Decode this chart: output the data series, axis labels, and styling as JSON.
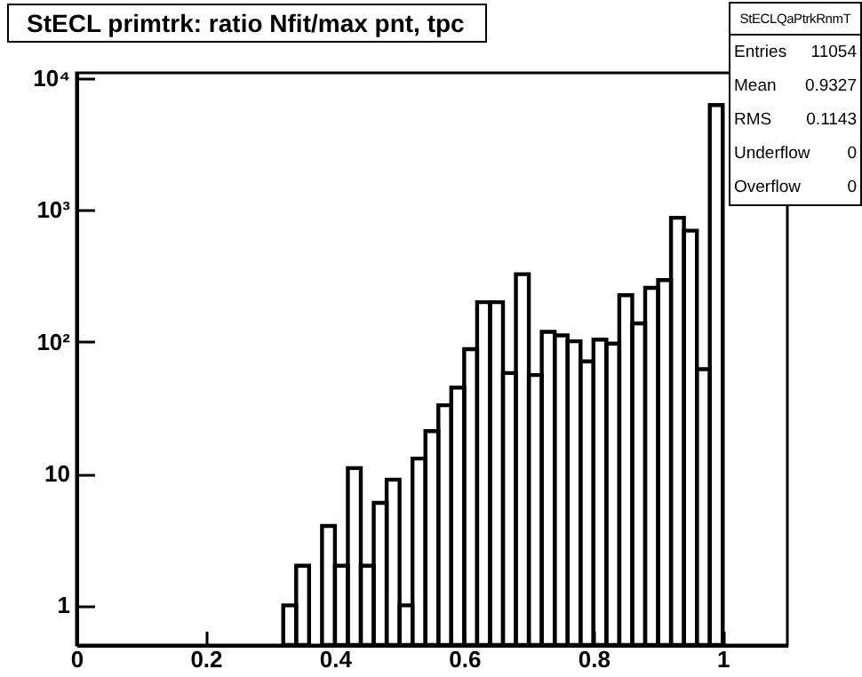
{
  "chart_data": {
    "type": "histogram",
    "title": "StECL primtrk: ratio Nfit/max pnt, tpc",
    "bins": [
      0.32,
      0.34,
      0.36,
      0.38,
      0.4,
      0.42,
      0.44,
      0.46,
      0.48,
      0.5,
      0.52,
      0.54,
      0.56,
      0.58,
      0.6,
      0.62,
      0.64,
      0.66,
      0.68,
      0.7,
      0.72,
      0.74,
      0.76,
      0.78,
      0.8,
      0.82,
      0.84,
      0.86,
      0.88,
      0.9,
      0.92,
      0.94,
      0.96,
      0.98,
      1.0
    ],
    "values": [
      1,
      2,
      null,
      4,
      2,
      11,
      2,
      6,
      9,
      1,
      13,
      21,
      33,
      45,
      88,
      200,
      200,
      58,
      326,
      56,
      119,
      112,
      101,
      71,
      104,
      97,
      226,
      138,
      257,
      294,
      874,
      698,
      62,
      6270
    ],
    "color": "#000000",
    "xlim": [
      0,
      1.1
    ],
    "xticks": [
      0,
      0.2,
      0.4,
      0.6,
      0.8,
      1
    ],
    "ylim": [
      0.5,
      11000
    ],
    "yticks": [
      1,
      10,
      {
        "value": 100,
        "label": "10²"
      },
      {
        "value": 1000,
        "label": "10³"
      },
      {
        "value": 10000,
        "label": "10⁴"
      }
    ],
    "log": "y",
    "grid": false,
    "annotations": [
      "StECLQaPtrkRnmT",
      "Entries",
      "11054",
      "Mean",
      "0.9327",
      "RMS",
      "0.1143",
      "Underflow",
      "0",
      "Overflow",
      "0"
    ]
  }
}
